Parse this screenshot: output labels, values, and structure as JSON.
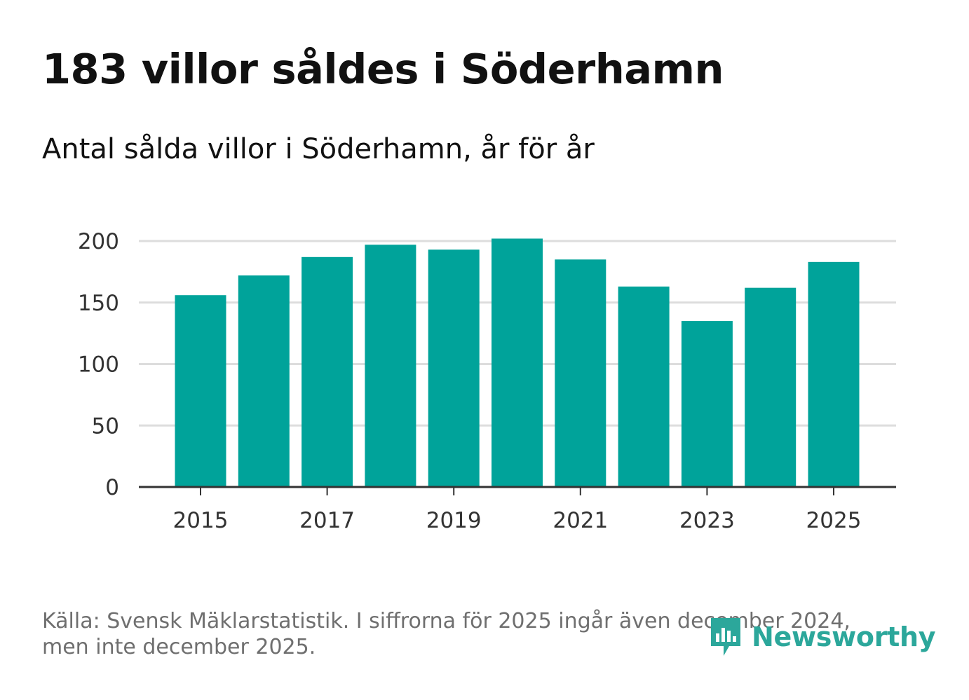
{
  "title": "183 villor såldes i Söderhamn",
  "subtitle": "Antal sålda villor i Söderhamn, år för år",
  "source": "Källa: Svensk Mäklarstatistik. I siffrorna för 2025 ingår även december 2024, men inte december 2025.",
  "brand": "Newsworthy",
  "colors": {
    "bar": "#00a39a",
    "grid": "#dddddd",
    "axis": "#333333",
    "brand": "#2ca79b"
  },
  "chart_data": {
    "type": "bar",
    "title": "183 villor såldes i Söderhamn",
    "subtitle": "Antal sålda villor i Söderhamn, år för år",
    "categories": [
      "2015",
      "2016",
      "2017",
      "2018",
      "2019",
      "2020",
      "2021",
      "2022",
      "2023",
      "2024",
      "2025"
    ],
    "values": [
      156,
      172,
      187,
      197,
      193,
      202,
      185,
      163,
      135,
      162,
      183
    ],
    "x_tick_labels": [
      "2015",
      "2017",
      "2019",
      "2021",
      "2023",
      "2025"
    ],
    "y_ticks": [
      0,
      50,
      100,
      150,
      200
    ],
    "ylim": [
      0,
      200
    ],
    "xlabel": "",
    "ylabel": "",
    "grid": true,
    "legend": "none"
  }
}
